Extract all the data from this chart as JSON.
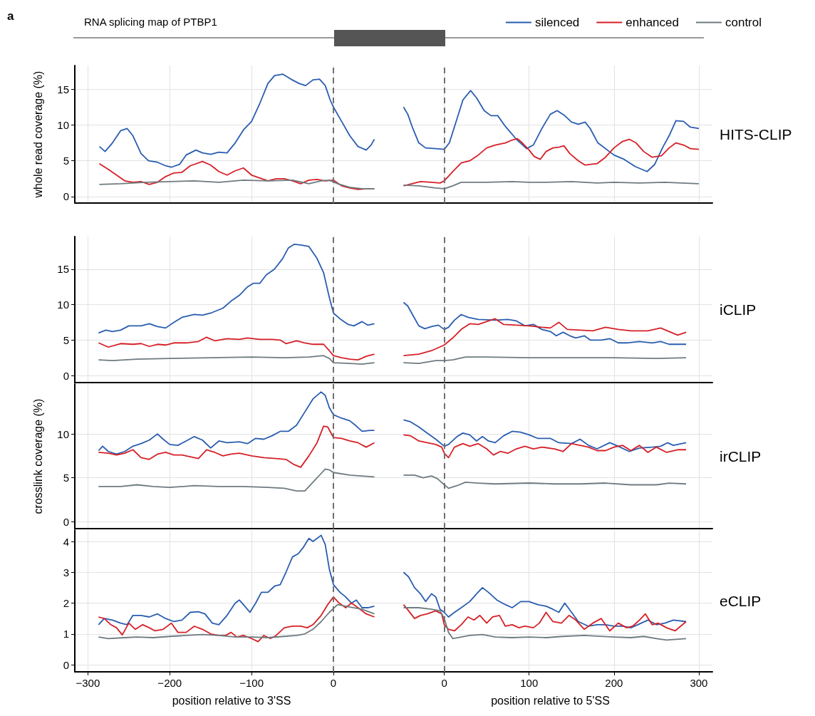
{
  "chart_data": [
    {
      "type": "line",
      "title": "RNA splicing map of PTBP1",
      "ylabel": "whole read coverage (%)",
      "annotations": [
        "a"
      ],
      "grid": true,
      "tick_labels": "y",
      "xlim": [
        -316,
        67
      ],
      "xticks": [
        -300,
        -200,
        -100,
        0
      ],
      "ylim": [
        -0.9,
        18.3
      ],
      "yticks": [
        0,
        5,
        10,
        15
      ],
      "ref_lines": [
        {
          "axis": "x",
          "value": 0,
          "color": "#707070",
          "line_style": "dashed"
        }
      ],
      "series": [
        {
          "color": "#2a5db0",
          "x": [
            -286,
            -279,
            -270,
            -260,
            -252,
            -245,
            -235,
            -226,
            -215,
            -205,
            -198,
            -188,
            -180,
            -168,
            -160,
            -150,
            -140,
            -130,
            -120,
            -110,
            -100,
            -90,
            -80,
            -72,
            -62,
            -52,
            -42,
            -34,
            -25,
            -17,
            -10,
            -4,
            0,
            10,
            20,
            30,
            40,
            46,
            50
          ],
          "values": [
            7.0,
            6.3,
            7.5,
            9.2,
            9.5,
            8.5,
            6,
            5,
            4.8,
            4.3,
            4.1,
            4.5,
            5.8,
            6.5,
            6.1,
            5.9,
            6.2,
            6.1,
            7.5,
            9.3,
            10.5,
            13,
            15.8,
            16.9,
            17.1,
            16.4,
            15.8,
            15.5,
            16.3,
            16.4,
            15.5,
            13.5,
            12.5,
            10.5,
            8.5,
            7.0,
            6.5,
            7.2,
            8.0
          ]
        },
        {
          "color": "#d62027",
          "x": [
            -286,
            -275,
            -265,
            -255,
            -245,
            -235,
            -225,
            -215,
            -205,
            -195,
            -185,
            -175,
            -160,
            -150,
            -140,
            -130,
            -120,
            -110,
            -100,
            -90,
            -80,
            -70,
            -60,
            -50,
            -40,
            -30,
            -20,
            -10,
            0,
            10,
            20,
            30,
            40,
            50
          ],
          "values": [
            4.6,
            3.8,
            3,
            2.2,
            2.0,
            2.1,
            1.7,
            2.0,
            2.8,
            3.3,
            3.4,
            4.3,
            4.9,
            4.4,
            3.5,
            3.0,
            3.6,
            4.0,
            3.0,
            2.6,
            2.2,
            2.5,
            2.5,
            2.2,
            1.8,
            2.3,
            2.4,
            2.2,
            2.3,
            1.5,
            1.2,
            1.0,
            1.1,
            1.1
          ]
        },
        {
          "color": "#6e7b80",
          "x": [
            -286,
            -260,
            -230,
            -200,
            -170,
            -140,
            -110,
            -80,
            -50,
            -30,
            -15,
            -5,
            5,
            20,
            35,
            50
          ],
          "values": [
            1.7,
            1.8,
            2.0,
            2.1,
            2.2,
            2.0,
            2.3,
            2.2,
            2.3,
            1.8,
            2.2,
            2.3,
            1.8,
            1.3,
            1.1,
            1.1
          ]
        }
      ]
    },
    {
      "type": "line",
      "y2label": "HITS-CLIP",
      "legend": "top right",
      "grid": true,
      "tick_labels": false,
      "xlim": [
        -66,
        316
      ],
      "xticks": [
        0,
        100,
        200,
        300
      ],
      "ylim": [
        -0.9,
        18.3
      ],
      "yticks": [
        0,
        5,
        10,
        15
      ],
      "ref_lines": [
        {
          "axis": "x",
          "value": 0,
          "color": "#707070",
          "line_style": "dashed"
        }
      ],
      "series": [
        {
          "name": "silenced",
          "color": "#2a5db0",
          "x": [
            -48,
            -43,
            -37,
            -30,
            -22,
            -10,
            0,
            6,
            14,
            22,
            31,
            38,
            47,
            55,
            63,
            72,
            85,
            97,
            105,
            115,
            125,
            133,
            142,
            150,
            158,
            166,
            172,
            181,
            200,
            212,
            225,
            239,
            248,
            258,
            265,
            273,
            282,
            290,
            300
          ],
          "values": [
            12.5,
            11.5,
            9.5,
            7.5,
            6.8,
            6.7,
            6.6,
            7.5,
            10.5,
            13.5,
            14.8,
            13.8,
            12,
            11.3,
            11.3,
            9.8,
            8,
            6.7,
            7.2,
            9.5,
            11.5,
            12,
            11.3,
            10.4,
            10.1,
            10.4,
            9.5,
            7.5,
            5.8,
            5.2,
            4.2,
            3.5,
            4.5,
            7,
            8.5,
            10.6,
            10.5,
            9.7,
            9.5
          ]
        },
        {
          "name": "enhanced",
          "color": "#d62027",
          "x": [
            -48,
            -38,
            -28,
            -15,
            -5,
            0,
            10,
            20,
            30,
            40,
            50,
            60,
            72,
            80,
            86,
            92,
            100,
            106,
            113,
            120,
            128,
            135,
            141,
            148,
            158,
            166,
            180,
            190,
            200,
            210,
            218,
            226,
            235,
            245,
            256,
            265,
            273,
            282,
            290,
            300
          ],
          "values": [
            1.5,
            1.8,
            2.1,
            2.0,
            1.9,
            2.2,
            3.5,
            4.7,
            5.0,
            5.8,
            6.8,
            7.2,
            7.5,
            7.9,
            8.1,
            7.5,
            6.5,
            5.6,
            5.2,
            6.3,
            6.8,
            6.9,
            7.1,
            6,
            5,
            4.4,
            4.6,
            5.5,
            6.8,
            7.7,
            8.0,
            7.5,
            6.3,
            5.5,
            5.7,
            6.8,
            7.5,
            7.2,
            6.7,
            6.6
          ]
        },
        {
          "name": "control",
          "color": "#6e7b80",
          "x": [
            -48,
            -30,
            -10,
            0,
            10,
            20,
            50,
            80,
            100,
            120,
            150,
            180,
            200,
            230,
            260,
            300
          ],
          "values": [
            1.6,
            1.5,
            1.2,
            1.1,
            1.5,
            2.0,
            2.0,
            2.1,
            2.0,
            2.0,
            2.1,
            1.9,
            2.0,
            1.9,
            2.0,
            1.8
          ]
        }
      ]
    },
    {
      "type": "line",
      "grid": true,
      "tick_labels": "y",
      "xlim": [
        -316,
        67
      ],
      "xticks": [
        -300,
        -200,
        -100,
        0
      ],
      "ylim": [
        -1,
        19.6
      ],
      "yticks": [
        0,
        5,
        10,
        15
      ],
      "ref_lines": [
        {
          "axis": "x",
          "value": 0,
          "color": "#707070",
          "line_style": "dashed"
        }
      ],
      "series": [
        {
          "color": "#2a5db0",
          "x": [
            -287,
            -278,
            -270,
            -260,
            -250,
            -235,
            -225,
            -215,
            -205,
            -195,
            -185,
            -170,
            -160,
            -150,
            -135,
            -125,
            -115,
            -105,
            -98,
            -90,
            -82,
            -72,
            -62,
            -55,
            -48,
            -40,
            -30,
            -20,
            -12,
            -5,
            0,
            8,
            18,
            25,
            35,
            42,
            50
          ],
          "values": [
            6.0,
            6.4,
            6.2,
            6.4,
            7.0,
            7.0,
            7.3,
            6.9,
            6.7,
            7.5,
            8.2,
            8.6,
            8.5,
            8.8,
            9.5,
            10.5,
            11.3,
            12.5,
            13.0,
            13.0,
            14.2,
            15,
            16.5,
            18,
            18.5,
            18.4,
            18.2,
            16.5,
            14.5,
            11,
            8.8,
            8,
            7.2,
            7.0,
            7.6,
            7.1,
            7.3
          ]
        },
        {
          "color": "#d62027",
          "x": [
            -287,
            -275,
            -260,
            -245,
            -235,
            -225,
            -215,
            -205,
            -195,
            -180,
            -165,
            -155,
            -145,
            -130,
            -115,
            -105,
            -90,
            -75,
            -65,
            -58,
            -45,
            -35,
            -25,
            -12,
            -5,
            0,
            10,
            20,
            30,
            40,
            50
          ],
          "values": [
            4.6,
            4.0,
            4.5,
            4.4,
            4.5,
            4.1,
            4.4,
            4.3,
            4.6,
            4.6,
            4.8,
            5.4,
            4.9,
            5.2,
            5.1,
            5.3,
            5.1,
            5.1,
            5.0,
            4.5,
            4.9,
            4.6,
            4.4,
            4.4,
            3.5,
            2.8,
            2.5,
            2.3,
            2.2,
            2.7,
            3.0
          ]
        },
        {
          "color": "#6e7b80",
          "x": [
            -287,
            -270,
            -240,
            -200,
            -150,
            -100,
            -60,
            -30,
            -12,
            -5,
            0,
            20,
            35,
            50
          ],
          "values": [
            2.2,
            2.1,
            2.3,
            2.4,
            2.5,
            2.6,
            2.5,
            2.6,
            2.8,
            2.4,
            1.8,
            1.7,
            1.6,
            1.8
          ]
        }
      ]
    },
    {
      "type": "line",
      "y2label": "iCLIP",
      "grid": true,
      "tick_labels": false,
      "xlim": [
        -66,
        316
      ],
      "xticks": [
        0,
        100,
        200,
        300
      ],
      "ylim": [
        -1,
        19.6
      ],
      "yticks": [
        0,
        5,
        10,
        15
      ],
      "ref_lines": [
        {
          "axis": "x",
          "value": 0,
          "color": "#707070",
          "line_style": "dashed"
        }
      ],
      "series": [
        {
          "color": "#2a5db0",
          "x": [
            -48,
            -43,
            -37,
            -30,
            -23,
            -15,
            -7,
            0,
            5,
            12,
            20,
            28,
            40,
            60,
            75,
            85,
            95,
            105,
            115,
            125,
            132,
            140,
            148,
            155,
            165,
            172,
            185,
            195,
            205,
            215,
            230,
            245,
            255,
            265,
            275,
            285
          ],
          "values": [
            10.3,
            9.8,
            8.5,
            7.0,
            6.6,
            6.9,
            7.1,
            6.5,
            6.8,
            7.8,
            8.6,
            8.2,
            7.9,
            7.8,
            7.9,
            7.7,
            7.0,
            7.2,
            6.5,
            6.2,
            5.6,
            6.1,
            5.6,
            5.3,
            5.6,
            5.0,
            5.0,
            5.2,
            4.6,
            4.6,
            4.8,
            4.6,
            4.8,
            4.4,
            4.4,
            4.4
          ]
        },
        {
          "color": "#d62027",
          "x": [
            -48,
            -30,
            -15,
            0,
            10,
            20,
            30,
            40,
            50,
            60,
            70,
            85,
            100,
            115,
            125,
            135,
            145,
            160,
            175,
            190,
            205,
            220,
            240,
            255,
            265,
            275,
            285
          ],
          "values": [
            2.8,
            3.0,
            3.5,
            4.3,
            5.3,
            6.5,
            7.3,
            7.2,
            7.6,
            8.0,
            7.2,
            7.1,
            7.0,
            6.8,
            6.7,
            7.5,
            6.5,
            6.4,
            6.3,
            6.8,
            6.5,
            6.3,
            6.3,
            6.7,
            6.2,
            5.7,
            6.1
          ]
        },
        {
          "color": "#6e7b80",
          "x": [
            -48,
            -30,
            -10,
            0,
            10,
            25,
            50,
            100,
            150,
            200,
            250,
            285
          ],
          "values": [
            1.8,
            1.7,
            2.1,
            2.1,
            2.2,
            2.6,
            2.6,
            2.5,
            2.5,
            2.5,
            2.4,
            2.5
          ]
        }
      ]
    },
    {
      "type": "line",
      "ylabel": "crosslink coverage (%)",
      "grid": true,
      "tick_labels": "y",
      "xlim": [
        -316,
        67
      ],
      "xticks": [
        -300,
        -200,
        -100,
        0
      ],
      "ylim": [
        -0.8,
        15.7
      ],
      "yticks": [
        0,
        5,
        10
      ],
      "ref_lines": [
        {
          "axis": "x",
          "value": 0,
          "color": "#707070",
          "line_style": "dashed"
        }
      ],
      "series": [
        {
          "color": "#2a5db0",
          "x": [
            -287,
            -282,
            -275,
            -265,
            -255,
            -245,
            -235,
            -225,
            -215,
            -208,
            -200,
            -190,
            -180,
            -170,
            -160,
            -150,
            -140,
            -130,
            -115,
            -105,
            -95,
            -85,
            -75,
            -65,
            -55,
            -45,
            -35,
            -25,
            -15,
            -10,
            -5,
            0,
            10,
            20,
            28,
            35,
            45,
            50
          ],
          "values": [
            8.1,
            8.6,
            8.0,
            7.7,
            8.0,
            8.6,
            8.9,
            9.3,
            10.0,
            9.4,
            8.8,
            8.7,
            9.2,
            9.7,
            9.3,
            8.4,
            9.2,
            9.0,
            9.1,
            8.9,
            9.5,
            9.4,
            9.8,
            10.3,
            10.3,
            11.0,
            12.5,
            14,
            14.8,
            14.4,
            13,
            12.2,
            11.8,
            11.5,
            10.9,
            10.3,
            10.4,
            10.4
          ]
        },
        {
          "color": "#d62027",
          "x": [
            -287,
            -275,
            -265,
            -255,
            -245,
            -235,
            -225,
            -215,
            -205,
            -195,
            -185,
            -175,
            -165,
            -155,
            -145,
            -135,
            -125,
            -115,
            -100,
            -85,
            -70,
            -58,
            -48,
            -40,
            -30,
            -20,
            -12,
            -7,
            0,
            10,
            20,
            30,
            40,
            50
          ],
          "values": [
            7.9,
            7.8,
            7.6,
            7.8,
            8.2,
            7.3,
            7.1,
            7.7,
            7.9,
            7.6,
            7.6,
            7.4,
            7.2,
            8.2,
            7.9,
            7.5,
            7.7,
            7.8,
            7.5,
            7.3,
            7.2,
            7.1,
            6.5,
            6.2,
            7.5,
            9.0,
            10.9,
            10.8,
            9.6,
            9.5,
            9.2,
            9.0,
            8.5,
            9.0
          ]
        },
        {
          "color": "#6e7b80",
          "x": [
            -287,
            -260,
            -240,
            -220,
            -200,
            -170,
            -140,
            -110,
            -80,
            -60,
            -45,
            -35,
            -25,
            -15,
            -10,
            -5,
            0,
            20,
            50
          ],
          "values": [
            4.0,
            4.0,
            4.2,
            4.0,
            3.9,
            4.1,
            4.0,
            4.0,
            3.9,
            3.8,
            3.5,
            3.5,
            4.5,
            5.5,
            6.0,
            5.9,
            5.6,
            5.3,
            5.1
          ]
        }
      ]
    },
    {
      "type": "line",
      "y2label": "irCLIP",
      "grid": true,
      "tick_labels": false,
      "xlim": [
        -66,
        316
      ],
      "xticks": [
        0,
        100,
        200,
        300
      ],
      "ylim": [
        -0.8,
        15.7
      ],
      "yticks": [
        0,
        5,
        10
      ],
      "ref_lines": [
        {
          "axis": "x",
          "value": 0,
          "color": "#707070",
          "line_style": "dashed"
        }
      ],
      "series": [
        {
          "color": "#2a5db0",
          "x": [
            -48,
            -40,
            -30,
            -20,
            -10,
            0,
            5,
            15,
            22,
            30,
            38,
            45,
            52,
            60,
            70,
            80,
            90,
            100,
            110,
            125,
            135,
            150,
            160,
            170,
            180,
            195,
            205,
            218,
            230,
            245,
            255,
            263,
            270,
            285
          ],
          "values": [
            11.6,
            11.4,
            10.8,
            10.1,
            9.4,
            8.6,
            8.8,
            9.7,
            10.1,
            9.9,
            9.2,
            9.7,
            9.2,
            9.0,
            9.8,
            10.3,
            10.2,
            9.9,
            9.5,
            9.5,
            9.0,
            8.9,
            9.4,
            8.7,
            8.3,
            9.0,
            8.6,
            8.0,
            8.4,
            8.5,
            8.6,
            9.0,
            8.7,
            9.0
          ]
        },
        {
          "color": "#d62027",
          "x": [
            -48,
            -40,
            -30,
            -20,
            -10,
            -3,
            0,
            5,
            12,
            22,
            30,
            40,
            50,
            58,
            66,
            75,
            85,
            95,
            105,
            115,
            130,
            140,
            150,
            160,
            170,
            180,
            190,
            200,
            210,
            220,
            230,
            240,
            250,
            262,
            275,
            285
          ],
          "values": [
            9.9,
            9.8,
            9.2,
            9.0,
            8.8,
            8.5,
            7.8,
            7.3,
            8.5,
            8.9,
            8.6,
            8.9,
            8.3,
            7.6,
            8.0,
            7.8,
            8.3,
            8.6,
            8.3,
            8.5,
            8.3,
            8.0,
            8.9,
            8.7,
            8.5,
            8.1,
            8.1,
            8.5,
            8.7,
            8.1,
            8.7,
            7.9,
            8.5,
            7.9,
            8.2,
            8.2
          ]
        },
        {
          "color": "#6e7b80",
          "x": [
            -48,
            -35,
            -25,
            -15,
            -8,
            0,
            5,
            15,
            25,
            40,
            60,
            100,
            130,
            160,
            190,
            220,
            250,
            265,
            285
          ],
          "values": [
            5.3,
            5.3,
            5.0,
            5.2,
            4.9,
            4.2,
            3.8,
            4.1,
            4.5,
            4.4,
            4.3,
            4.4,
            4.3,
            4.3,
            4.4,
            4.2,
            4.2,
            4.4,
            4.3
          ]
        }
      ]
    },
    {
      "type": "line",
      "xlabel": "position relative to 3'SS",
      "grid": true,
      "xlim": [
        -316,
        67
      ],
      "xticks": [
        {
          "value": -300,
          "label": "−300"
        },
        {
          "value": -200,
          "label": "−200"
        },
        {
          "value": -100,
          "label": "−100"
        },
        0
      ],
      "ylim": [
        -0.23,
        4.37
      ],
      "yticks": [
        0,
        1,
        2,
        3,
        4
      ],
      "ref_lines": [
        {
          "axis": "x",
          "value": 0,
          "color": "#707070",
          "line_style": "dashed"
        }
      ],
      "series": [
        {
          "color": "#2a5db0",
          "x": [
            -287,
            -280,
            -270,
            -260,
            -252,
            -245,
            -235,
            -225,
            -215,
            -205,
            -195,
            -185,
            -175,
            -165,
            -157,
            -148,
            -140,
            -130,
            -120,
            -115,
            -110,
            -102,
            -95,
            -88,
            -80,
            -72,
            -65,
            -58,
            -50,
            -43,
            -37,
            -30,
            -25,
            -20,
            -15,
            -10,
            -5,
            0,
            8,
            15,
            22,
            28,
            35,
            42,
            50
          ],
          "values": [
            1.3,
            1.5,
            1.45,
            1.35,
            1.3,
            1.6,
            1.6,
            1.55,
            1.65,
            1.5,
            1.4,
            1.45,
            1.7,
            1.72,
            1.65,
            1.35,
            1.3,
            1.6,
            2.0,
            2.1,
            1.95,
            1.7,
            2.0,
            2.35,
            2.35,
            2.55,
            2.6,
            3.0,
            3.5,
            3.6,
            3.8,
            4.1,
            4.0,
            4.1,
            4.2,
            3.9,
            3.1,
            2.6,
            2.35,
            2.2,
            2.0,
            2.1,
            1.85,
            1.85,
            1.9
          ]
        },
        {
          "color": "#d62027",
          "x": [
            -287,
            -280,
            -272,
            -265,
            -258,
            -250,
            -242,
            -233,
            -225,
            -218,
            -208,
            -198,
            -190,
            -180,
            -170,
            -160,
            -150,
            -140,
            -132,
            -125,
            -118,
            -110,
            -100,
            -92,
            -85,
            -77,
            -70,
            -60,
            -50,
            -40,
            -32,
            -25,
            -15,
            -7,
            0,
            7,
            15,
            22,
            30,
            40,
            50
          ],
          "values": [
            1.55,
            1.5,
            1.3,
            1.2,
            0.97,
            1.35,
            1.15,
            1.3,
            1.2,
            1.1,
            1.15,
            1.35,
            1.05,
            1.05,
            1.25,
            1.15,
            1.0,
            0.95,
            0.95,
            1.05,
            0.9,
            0.95,
            0.85,
            0.75,
            0.95,
            0.85,
            0.95,
            1.2,
            1.25,
            1.25,
            1.2,
            1.3,
            1.6,
            1.95,
            2.2,
            2.0,
            1.85,
            2.0,
            1.85,
            1.65,
            1.55
          ]
        },
        {
          "color": "#6e7b80",
          "x": [
            -287,
            -275,
            -255,
            -240,
            -220,
            -200,
            -180,
            -160,
            -140,
            -120,
            -100,
            -80,
            -60,
            -45,
            -35,
            -25,
            -15,
            -5,
            5,
            15,
            25,
            35,
            50
          ],
          "values": [
            0.9,
            0.85,
            0.88,
            0.9,
            0.88,
            0.92,
            0.95,
            0.98,
            0.95,
            0.9,
            0.9,
            0.88,
            0.92,
            0.95,
            1.0,
            1.15,
            1.4,
            1.7,
            1.95,
            1.9,
            1.85,
            1.8,
            1.65
          ]
        }
      ]
    },
    {
      "type": "line",
      "y2label": "eCLIP",
      "xlabel": "position relative to 5'SS",
      "grid": true,
      "tick_labels": "x",
      "xlim": [
        -66,
        316
      ],
      "xticks": [
        0,
        100,
        200,
        300
      ],
      "ylim": [
        -0.23,
        4.37
      ],
      "yticks": [
        0,
        1,
        2,
        3,
        4
      ],
      "ref_lines": [
        {
          "axis": "x",
          "value": 0,
          "color": "#707070",
          "line_style": "dashed"
        }
      ],
      "series": [
        {
          "color": "#2a5db0",
          "x": [
            -48,
            -42,
            -35,
            -28,
            -22,
            -15,
            -10,
            -5,
            0,
            5,
            12,
            20,
            30,
            38,
            45,
            52,
            62,
            72,
            80,
            90,
            100,
            110,
            120,
            128,
            135,
            142,
            150,
            158,
            170,
            180,
            190,
            200,
            210,
            220,
            228,
            240,
            250,
            260,
            270,
            285
          ],
          "values": [
            3.0,
            2.85,
            2.5,
            2.3,
            2.05,
            2.3,
            2.2,
            1.8,
            1.7,
            1.55,
            1.7,
            1.85,
            2.05,
            2.3,
            2.5,
            2.35,
            2.1,
            1.95,
            1.85,
            2.05,
            2.05,
            1.95,
            1.9,
            1.8,
            1.7,
            2.0,
            1.7,
            1.4,
            1.25,
            1.3,
            1.3,
            1.25,
            1.25,
            1.2,
            1.3,
            1.45,
            1.3,
            1.35,
            1.45,
            1.4
          ]
        },
        {
          "color": "#d62027",
          "x": [
            -48,
            -42,
            -35,
            -28,
            -20,
            -10,
            -3,
            0,
            5,
            12,
            20,
            28,
            35,
            42,
            50,
            57,
            65,
            72,
            80,
            88,
            95,
            105,
            112,
            120,
            128,
            138,
            147,
            155,
            165,
            175,
            185,
            195,
            205,
            215,
            222,
            230,
            237,
            245,
            252,
            262,
            272,
            285
          ],
          "values": [
            1.95,
            1.75,
            1.5,
            1.6,
            1.65,
            1.75,
            1.65,
            1.3,
            1.15,
            1.1,
            1.3,
            1.55,
            1.45,
            1.6,
            1.35,
            1.55,
            1.6,
            1.25,
            1.3,
            1.2,
            1.25,
            1.2,
            1.35,
            1.7,
            1.4,
            1.35,
            1.6,
            1.45,
            1.15,
            1.35,
            1.5,
            1.1,
            1.35,
            1.2,
            1.25,
            1.45,
            1.65,
            1.3,
            1.35,
            1.2,
            1.1,
            1.4
          ]
        },
        {
          "color": "#6e7b80",
          "x": [
            -48,
            -30,
            -15,
            -5,
            0,
            5,
            10,
            20,
            30,
            45,
            60,
            80,
            100,
            120,
            140,
            165,
            180,
            200,
            220,
            235,
            250,
            262,
            285
          ],
          "values": [
            1.85,
            1.85,
            1.8,
            1.75,
            1.5,
            1.05,
            0.85,
            0.9,
            0.95,
            0.98,
            0.9,
            0.88,
            0.9,
            0.88,
            0.92,
            0.95,
            0.93,
            0.9,
            0.88,
            0.92,
            0.85,
            0.8,
            0.85
          ]
        }
      ]
    }
  ]
}
